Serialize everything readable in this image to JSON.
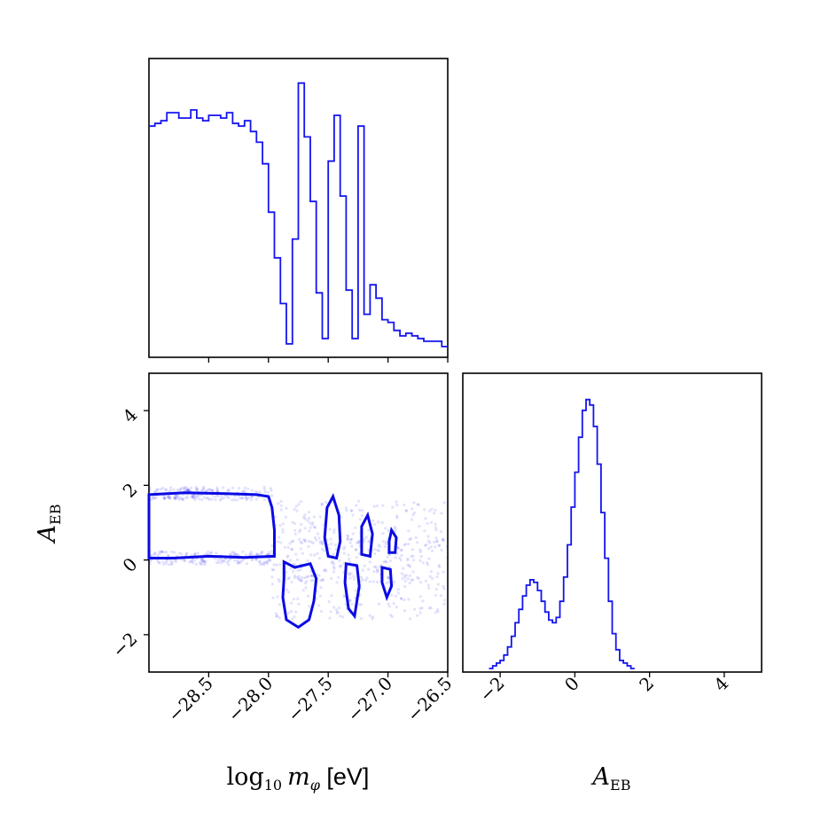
{
  "chart_data": [
    {
      "type": "histogram",
      "panel": "top-left",
      "variable": "log10 m_phi [eV]",
      "xlim": [
        -29.0,
        -26.5
      ],
      "color": "#1414ee",
      "bins": [
        [
          -29.0,
          0.84
        ],
        [
          -28.95,
          0.85
        ],
        [
          -28.9,
          0.86
        ],
        [
          -28.85,
          0.89
        ],
        [
          -28.8,
          0.89
        ],
        [
          -28.75,
          0.87
        ],
        [
          -28.7,
          0.87
        ],
        [
          -28.65,
          0.9
        ],
        [
          -28.6,
          0.87
        ],
        [
          -28.55,
          0.86
        ],
        [
          -28.5,
          0.88
        ],
        [
          -28.45,
          0.88
        ],
        [
          -28.4,
          0.87
        ],
        [
          -28.35,
          0.89
        ],
        [
          -28.3,
          0.85
        ],
        [
          -28.25,
          0.84
        ],
        [
          -28.2,
          0.86
        ],
        [
          -28.15,
          0.82
        ],
        [
          -28.1,
          0.78
        ],
        [
          -28.05,
          0.7
        ],
        [
          -28.0,
          0.52
        ],
        [
          -27.95,
          0.35
        ],
        [
          -27.9,
          0.18
        ],
        [
          -27.85,
          0.03
        ],
        [
          -27.8,
          0.42
        ],
        [
          -27.75,
          1.0
        ],
        [
          -27.7,
          0.8
        ],
        [
          -27.65,
          0.56
        ],
        [
          -27.6,
          0.22
        ],
        [
          -27.55,
          0.05
        ],
        [
          -27.5,
          0.71
        ],
        [
          -27.45,
          0.88
        ],
        [
          -27.4,
          0.58
        ],
        [
          -27.35,
          0.23
        ],
        [
          -27.3,
          0.05
        ],
        [
          -27.25,
          0.84
        ],
        [
          -27.2,
          0.14
        ],
        [
          -27.15,
          0.25
        ],
        [
          -27.1,
          0.2
        ],
        [
          -27.05,
          0.12
        ],
        [
          -27.0,
          0.11
        ],
        [
          -26.95,
          0.08
        ],
        [
          -26.9,
          0.06
        ],
        [
          -26.85,
          0.07
        ],
        [
          -26.8,
          0.06
        ],
        [
          -26.75,
          0.05
        ],
        [
          -26.7,
          0.04
        ],
        [
          -26.65,
          0.04
        ],
        [
          -26.6,
          0.04
        ],
        [
          -26.55,
          0.02
        ]
      ]
    },
    {
      "type": "scatter",
      "panel": "bottom-left",
      "xlabel": "log10 m_phi [eV]",
      "ylabel": "A_EB",
      "xlim": [
        -29.0,
        -26.5
      ],
      "ylim": [
        -3,
        5
      ],
      "xticks": [
        "-28.5",
        "-28.0",
        "-27.5",
        "-27.0",
        "-26.5"
      ],
      "yticks": [
        "-2",
        "0",
        "2",
        "4"
      ],
      "color": "#1414ee",
      "contours": [
        {
          "name": "upper-plateau",
          "points": [
            [
              -29.0,
              1.75
            ],
            [
              -28.7,
              1.8
            ],
            [
              -28.4,
              1.78
            ],
            [
              -28.1,
              1.75
            ],
            [
              -28.0,
              1.7
            ],
            [
              -27.97,
              1.4
            ],
            [
              -27.95,
              0.8
            ],
            [
              -27.95,
              0.1
            ],
            [
              -28.2,
              0.07
            ],
            [
              -28.5,
              0.1
            ],
            [
              -28.8,
              0.05
            ],
            [
              -29.0,
              0.05
            ]
          ]
        },
        {
          "name": "lower-1",
          "points": [
            [
              -27.87,
              -0.05
            ],
            [
              -27.78,
              -0.2
            ],
            [
              -27.65,
              -0.1
            ],
            [
              -27.6,
              -0.5
            ],
            [
              -27.62,
              -1.1
            ],
            [
              -27.66,
              -1.6
            ],
            [
              -27.75,
              -1.8
            ],
            [
              -27.85,
              -1.6
            ],
            [
              -27.88,
              -1.0
            ],
            [
              -27.87,
              -0.5
            ]
          ]
        },
        {
          "name": "upper-1",
          "points": [
            [
              -27.5,
              0.1
            ],
            [
              -27.43,
              0.05
            ],
            [
              -27.4,
              0.5
            ],
            [
              -27.41,
              1.2
            ],
            [
              -27.46,
              1.7
            ],
            [
              -27.51,
              1.4
            ],
            [
              -27.53,
              0.6
            ]
          ]
        },
        {
          "name": "lower-2",
          "points": [
            [
              -27.35,
              -0.1
            ],
            [
              -27.26,
              -0.15
            ],
            [
              -27.24,
              -0.7
            ],
            [
              -27.28,
              -1.5
            ],
            [
              -27.33,
              -1.3
            ],
            [
              -27.36,
              -0.6
            ]
          ]
        },
        {
          "name": "upper-2",
          "points": [
            [
              -27.22,
              0.15
            ],
            [
              -27.15,
              0.1
            ],
            [
              -27.13,
              0.7
            ],
            [
              -27.17,
              1.2
            ],
            [
              -27.22,
              0.9
            ]
          ]
        },
        {
          "name": "lower-3",
          "points": [
            [
              -27.05,
              -0.2
            ],
            [
              -26.98,
              -0.25
            ],
            [
              -26.97,
              -0.7
            ],
            [
              -27.01,
              -1.0
            ],
            [
              -27.05,
              -0.6
            ]
          ]
        },
        {
          "name": "upper-3",
          "points": [
            [
              -26.99,
              0.2
            ],
            [
              -26.94,
              0.2
            ],
            [
              -26.93,
              0.6
            ],
            [
              -26.97,
              0.8
            ],
            [
              -26.99,
              0.5
            ]
          ]
        }
      ]
    },
    {
      "type": "histogram",
      "panel": "bottom-right",
      "xlabel": "A_EB",
      "xlim": [
        -3,
        5
      ],
      "xticks": [
        "-2",
        "0",
        "2",
        "4"
      ],
      "color": "#1414ee",
      "bins": [
        [
          -2.3,
          0.0
        ],
        [
          -2.2,
          0.01
        ],
        [
          -2.1,
          0.02
        ],
        [
          -2.0,
          0.03
        ],
        [
          -1.9,
          0.05
        ],
        [
          -1.8,
          0.08
        ],
        [
          -1.7,
          0.12
        ],
        [
          -1.6,
          0.17
        ],
        [
          -1.5,
          0.22
        ],
        [
          -1.4,
          0.27
        ],
        [
          -1.3,
          0.31
        ],
        [
          -1.2,
          0.33
        ],
        [
          -1.1,
          0.32
        ],
        [
          -1.0,
          0.29
        ],
        [
          -0.9,
          0.25
        ],
        [
          -0.8,
          0.21
        ],
        [
          -0.7,
          0.18
        ],
        [
          -0.6,
          0.17
        ],
        [
          -0.5,
          0.19
        ],
        [
          -0.4,
          0.25
        ],
        [
          -0.3,
          0.34
        ],
        [
          -0.2,
          0.46
        ],
        [
          -0.1,
          0.6
        ],
        [
          0.0,
          0.73
        ],
        [
          0.1,
          0.86
        ],
        [
          0.2,
          0.96
        ],
        [
          0.3,
          1.0
        ],
        [
          0.4,
          0.98
        ],
        [
          0.5,
          0.9
        ],
        [
          0.6,
          0.76
        ],
        [
          0.7,
          0.58
        ],
        [
          0.8,
          0.41
        ],
        [
          0.9,
          0.25
        ],
        [
          1.0,
          0.13
        ],
        [
          1.1,
          0.07
        ],
        [
          1.2,
          0.03
        ],
        [
          1.3,
          0.02
        ],
        [
          1.4,
          0.01
        ],
        [
          1.5,
          0.0
        ]
      ]
    }
  ],
  "labels": {
    "x_log10": "log",
    "x_log10_sub": "10",
    "x_m": "m",
    "x_m_sub": "φ",
    "x_unit": " [eV]",
    "a_main": "A",
    "a_sub": "EB"
  }
}
